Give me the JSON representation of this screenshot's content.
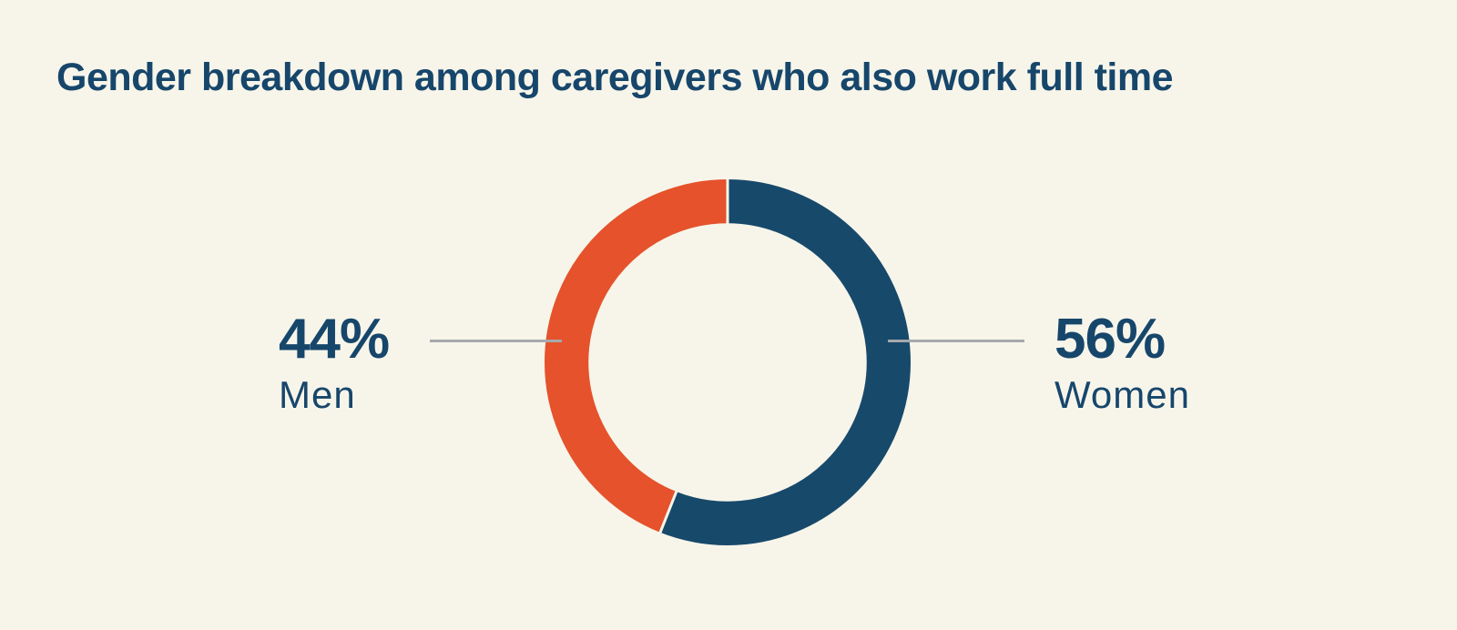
{
  "page": {
    "background_color": "#f7f5ea",
    "accent_navy": "#17466b",
    "accent_orange": "#e5522b",
    "pointer_line_color": "#a6a9ac"
  },
  "title": "Gender breakdown among caregivers who also work full time",
  "chart_data": {
    "type": "pie",
    "subtype": "donut",
    "title": "Gender breakdown among caregivers who also work full time",
    "start_angle_deg": 0,
    "direction": "clockwise",
    "inner_radius_ratio": 0.76,
    "gap_color": "#f7f5ea",
    "slices": [
      {
        "label": "Women",
        "value": 56,
        "display": "56%",
        "color": "#17496b",
        "label_side": "right"
      },
      {
        "label": "Men",
        "value": 44,
        "display": "44%",
        "color": "#e5522b",
        "label_side": "left"
      }
    ],
    "legend_position": "none",
    "annotations": [
      {
        "text": "44% Men",
        "side": "left"
      },
      {
        "text": "56% Women",
        "side": "right"
      }
    ]
  }
}
